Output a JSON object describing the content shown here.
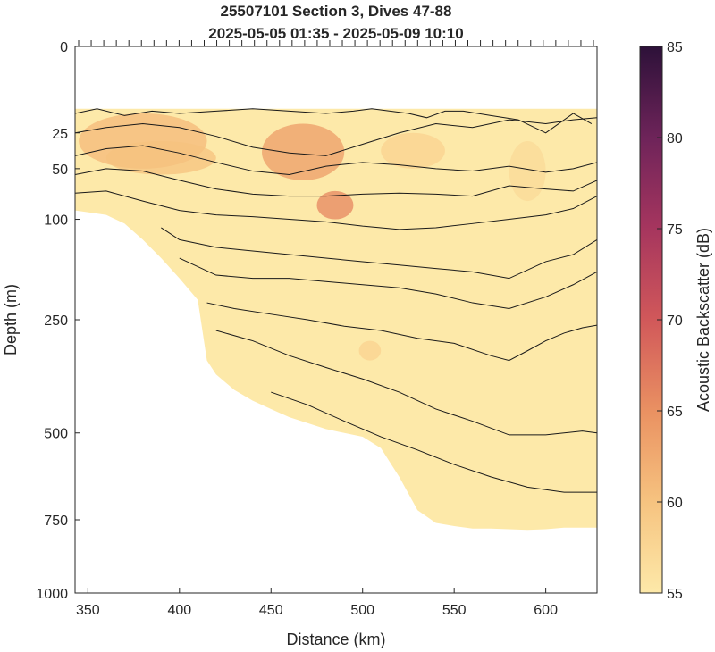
{
  "chart_data": {
    "type": "heatmap",
    "title": "25507101 Section 3, Dives 47-88",
    "subtitle": "2025-05-05 01:35 - 2025-05-09 10:10",
    "xlabel": "Distance (km)",
    "ylabel": "Depth (m)",
    "xlim": [
      343,
      628
    ],
    "xticks": [
      350,
      400,
      450,
      500,
      550,
      600
    ],
    "ylim": [
      0,
      1000
    ],
    "yscale": "sqrt",
    "yticks": [
      0,
      25,
      50,
      100,
      250,
      500,
      750,
      1000
    ],
    "colorbar": {
      "label": "Acoustic Backscatter (dB)",
      "range": [
        55,
        85
      ],
      "ticks": [
        55,
        60,
        65,
        70,
        75,
        80,
        85
      ]
    },
    "section_outline": {
      "distance": [
        343,
        350,
        360,
        370,
        380,
        390,
        400,
        410,
        415,
        420,
        430,
        440,
        450,
        460,
        470,
        480,
        490,
        500,
        510,
        520,
        530,
        540,
        550,
        560,
        570,
        580,
        590,
        600,
        610,
        620,
        628
      ],
      "max_depth": [
        90,
        92,
        95,
        105,
        125,
        150,
        180,
        215,
        330,
        360,
        395,
        420,
        440,
        460,
        475,
        490,
        500,
        510,
        540,
        620,
        720,
        760,
        770,
        778,
        778,
        780,
        782,
        780,
        775,
        775,
        775
      ],
      "min_depth": 13
    },
    "backscatter_patches": [
      {
        "distance": 345,
        "depth": 15,
        "width_km": 70,
        "height_m": 35,
        "db": 61
      },
      {
        "distance": 360,
        "depth": 30,
        "width_km": 60,
        "height_m": 25,
        "db": 60
      },
      {
        "distance": 445,
        "depth": 20,
        "width_km": 45,
        "height_m": 40,
        "db": 64
      },
      {
        "distance": 475,
        "depth": 70,
        "width_km": 20,
        "height_m": 30,
        "db": 66
      },
      {
        "distance": 510,
        "depth": 25,
        "width_km": 35,
        "height_m": 25,
        "db": 58
      },
      {
        "distance": 580,
        "depth": 30,
        "width_km": 20,
        "height_m": 50,
        "db": 57
      },
      {
        "distance": 498,
        "depth": 290,
        "width_km": 12,
        "height_m": 40,
        "db": 58
      }
    ],
    "contours": [
      {
        "x": [
          343,
          355,
          370,
          385,
          400,
          420,
          440,
          460,
          480,
          495,
          505,
          515,
          525,
          535,
          545,
          555,
          570,
          585,
          600,
          615,
          625
        ],
        "y": [
          15,
          13,
          16,
          14,
          15,
          14,
          13,
          14,
          15,
          14,
          13,
          14,
          15,
          17,
          14,
          14,
          16,
          18,
          25,
          15,
          20
        ]
      },
      {
        "x": [
          343,
          360,
          380,
          400,
          420,
          440,
          460,
          480,
          500,
          520,
          540,
          560,
          580,
          600,
          615,
          628
        ],
        "y": [
          25,
          22,
          20,
          22,
          27,
          34,
          38,
          40,
          32,
          25,
          20,
          22,
          18,
          20,
          18,
          17
        ]
      },
      {
        "x": [
          343,
          360,
          380,
          400,
          420,
          440,
          460,
          480,
          500,
          520,
          540,
          560,
          580,
          600,
          615,
          628
        ],
        "y": [
          40,
          35,
          33,
          38,
          45,
          52,
          55,
          48,
          45,
          47,
          50,
          52,
          48,
          53,
          50,
          45
        ]
      },
      {
        "x": [
          343,
          360,
          380,
          400,
          420,
          440,
          460,
          480,
          500,
          520,
          540,
          560,
          580,
          600,
          615,
          628
        ],
        "y": [
          55,
          50,
          52,
          60,
          68,
          73,
          75,
          75,
          73,
          72,
          73,
          75,
          65,
          68,
          70,
          60
        ]
      },
      {
        "x": [
          343,
          360,
          380,
          400,
          420,
          440,
          460,
          480,
          500,
          520,
          540,
          560,
          580,
          600,
          615,
          628
        ],
        "y": [
          72,
          70,
          80,
          90,
          95,
          97,
          100,
          103,
          108,
          112,
          110,
          105,
          100,
          95,
          88,
          75
        ]
      },
      {
        "x": [
          390,
          400,
          420,
          440,
          460,
          480,
          500,
          520,
          540,
          560,
          580,
          600,
          615,
          628
        ],
        "y": [
          110,
          125,
          135,
          140,
          145,
          150,
          155,
          160,
          165,
          170,
          180,
          155,
          145,
          125
        ]
      },
      {
        "x": [
          400,
          420,
          440,
          460,
          480,
          500,
          520,
          540,
          560,
          580,
          600,
          615,
          628
        ],
        "y": [
          150,
          175,
          180,
          180,
          185,
          190,
          195,
          205,
          220,
          230,
          210,
          190,
          170
        ]
      },
      {
        "x": [
          415,
          430,
          450,
          470,
          490,
          510,
          530,
          550,
          570,
          580,
          590,
          600,
          610,
          620,
          628
        ],
        "y": [
          220,
          230,
          240,
          250,
          262,
          270,
          285,
          295,
          320,
          330,
          310,
          290,
          275,
          265,
          260
        ]
      },
      {
        "x": [
          420,
          440,
          460,
          480,
          500,
          520,
          540,
          560,
          580,
          600,
          620,
          628
        ],
        "y": [
          270,
          290,
          320,
          345,
          370,
          400,
          440,
          470,
          505,
          505,
          495,
          500
        ]
      },
      {
        "x": [
          450,
          470,
          490,
          510,
          530,
          550,
          570,
          590,
          610,
          628
        ],
        "y": [
          400,
          430,
          470,
          510,
          545,
          585,
          620,
          650,
          665,
          665
        ]
      }
    ]
  }
}
